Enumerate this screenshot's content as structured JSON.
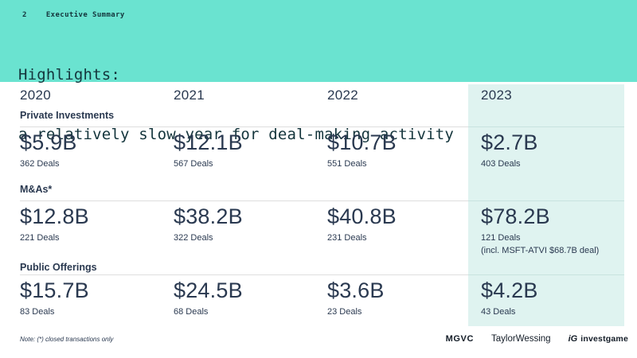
{
  "slide": {
    "page_number": "2",
    "section_title": "Executive Summary",
    "title": "Highlights:",
    "subtitle": "a relatively slow year for deal-making activity"
  },
  "colors": {
    "accent_teal": "#6AE3D0",
    "highlight_column": "#DFF3F0",
    "text_navy": "#2A3950",
    "header_text": "#14353C"
  },
  "table": {
    "years": [
      "2020",
      "2021",
      "2022",
      "2023"
    ],
    "highlighted_year": "2023",
    "sections": [
      {
        "label": "Private Investments",
        "cells": [
          {
            "value": "$5.9B",
            "deals": "362 Deals"
          },
          {
            "value": "$12.1B",
            "deals": "567 Deals"
          },
          {
            "value": "$10.7B",
            "deals": "551 Deals"
          },
          {
            "value": "$2.7B",
            "deals": "403 Deals"
          }
        ]
      },
      {
        "label": "M&As*",
        "cells": [
          {
            "value": "$12.8B",
            "deals": "221 Deals"
          },
          {
            "value": "$38.2B",
            "deals": "322 Deals"
          },
          {
            "value": "$40.8B",
            "deals": "231 Deals"
          },
          {
            "value": "$78.2B",
            "deals": "121 Deals",
            "note": "(incl. MSFT-ATVI $68.7B deal)"
          }
        ]
      },
      {
        "label": "Public Offerings",
        "cells": [
          {
            "value": "$15.7B",
            "deals": "83 Deals"
          },
          {
            "value": "$24.5B",
            "deals": "68 Deals"
          },
          {
            "value": "$3.6B",
            "deals": "23 Deals"
          },
          {
            "value": "$4.2B",
            "deals": "43 Deals"
          }
        ]
      }
    ]
  },
  "footer": {
    "note": "Note: (*) closed transactions only",
    "logos": {
      "mgvc": "MGVC",
      "taylor_wessing": "TaylorWessing",
      "investgame_mark": "iG",
      "investgame": "investgame"
    }
  }
}
